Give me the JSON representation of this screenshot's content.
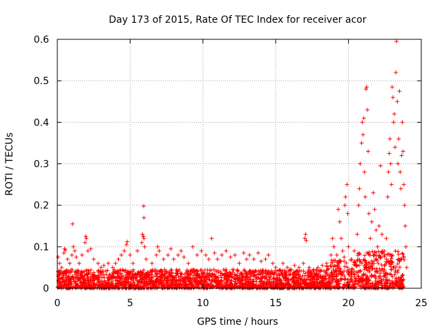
{
  "chart_data": {
    "type": "scatter",
    "title": "Day 173 of 2015, Rate Of TEC Index for receiver acor",
    "xlabel": "GPS time / hours",
    "ylabel": "ROTI / TECUs",
    "xlim": [
      0,
      25
    ],
    "ylim": [
      0,
      0.6
    ],
    "xticks": [
      0,
      5,
      10,
      15,
      20,
      25
    ],
    "xtick_labels": [
      "0",
      "5",
      "10",
      "15",
      "20",
      "25"
    ],
    "yticks": [
      0,
      0.1,
      0.2,
      0.3,
      0.4,
      0.5,
      0.6
    ],
    "ytick_labels": [
      "0",
      "0.1",
      "0.2",
      "0.3",
      "0.4",
      "0.5",
      "0.6"
    ],
    "grid": true,
    "marker": "+",
    "marker_color": "#ff0000",
    "series": [
      {
        "name": "ROTI",
        "points": [
          [
            0.05,
            0.075
          ],
          [
            0.15,
            0.06
          ],
          [
            0.3,
            0.05
          ],
          [
            0.45,
            0.085
          ],
          [
            0.5,
            0.095
          ],
          [
            0.55,
            0.092
          ],
          [
            0.7,
            0.07
          ],
          [
            0.85,
            0.06
          ],
          [
            1.0,
            0.08
          ],
          [
            1.05,
            0.155
          ],
          [
            1.1,
            0.1
          ],
          [
            1.2,
            0.09
          ],
          [
            1.3,
            0.075
          ],
          [
            1.5,
            0.06
          ],
          [
            1.7,
            0.08
          ],
          [
            1.9,
            0.11
          ],
          [
            1.95,
            0.125
          ],
          [
            2.0,
            0.12
          ],
          [
            2.1,
            0.09
          ],
          [
            2.3,
            0.095
          ],
          [
            2.5,
            0.07
          ],
          [
            2.8,
            0.06
          ],
          [
            3.0,
            0.05
          ],
          [
            3.2,
            0.055
          ],
          [
            3.5,
            0.06
          ],
          [
            3.8,
            0.05
          ],
          [
            4.0,
            0.06
          ],
          [
            4.2,
            0.07
          ],
          [
            4.4,
            0.08
          ],
          [
            4.6,
            0.09
          ],
          [
            4.75,
            0.105
          ],
          [
            4.8,
            0.112
          ],
          [
            5.0,
            0.08
          ],
          [
            5.2,
            0.06
          ],
          [
            5.5,
            0.09
          ],
          [
            5.8,
            0.11
          ],
          [
            5.85,
            0.13
          ],
          [
            5.9,
            0.125
          ],
          [
            5.95,
            0.12
          ],
          [
            6.0,
            0.1
          ],
          [
            5.93,
            0.198
          ],
          [
            5.95,
            0.17
          ],
          [
            6.1,
            0.07
          ],
          [
            6.5,
            0.06
          ],
          [
            6.8,
            0.08
          ],
          [
            6.9,
            0.1
          ],
          [
            7.0,
            0.09
          ],
          [
            7.3,
            0.07
          ],
          [
            7.6,
            0.08
          ],
          [
            7.8,
            0.095
          ],
          [
            8.0,
            0.07
          ],
          [
            8.3,
            0.08
          ],
          [
            8.5,
            0.09
          ],
          [
            8.7,
            0.075
          ],
          [
            9.0,
            0.06
          ],
          [
            9.3,
            0.1
          ],
          [
            9.6,
            0.08
          ],
          [
            9.9,
            0.09
          ],
          [
            10.2,
            0.08
          ],
          [
            10.4,
            0.07
          ],
          [
            10.6,
            0.12
          ],
          [
            10.8,
            0.085
          ],
          [
            11.0,
            0.07
          ],
          [
            11.3,
            0.08
          ],
          [
            11.6,
            0.09
          ],
          [
            11.9,
            0.075
          ],
          [
            12.2,
            0.08
          ],
          [
            12.5,
            0.06
          ],
          [
            12.8,
            0.085
          ],
          [
            13.0,
            0.07
          ],
          [
            13.2,
            0.08
          ],
          [
            13.5,
            0.07
          ],
          [
            13.8,
            0.085
          ],
          [
            14.0,
            0.065
          ],
          [
            14.3,
            0.07
          ],
          [
            14.5,
            0.08
          ],
          [
            14.8,
            0.06
          ],
          [
            15.0,
            0.05
          ],
          [
            15.3,
            0.045
          ],
          [
            15.5,
            0.06
          ],
          [
            15.8,
            0.05
          ],
          [
            16.0,
            0.045
          ],
          [
            16.3,
            0.055
          ],
          [
            16.6,
            0.05
          ],
          [
            16.9,
            0.06
          ],
          [
            17.0,
            0.12
          ],
          [
            17.05,
            0.13
          ],
          [
            17.1,
            0.115
          ],
          [
            17.3,
            0.05
          ],
          [
            17.6,
            0.045
          ],
          [
            17.9,
            0.05
          ],
          [
            18.2,
            0.055
          ],
          [
            18.5,
            0.06
          ],
          [
            18.8,
            0.08
          ],
          [
            18.9,
            0.12
          ],
          [
            19.0,
            0.1
          ],
          [
            19.2,
            0.08
          ],
          [
            19.3,
            0.19
          ],
          [
            19.4,
            0.16
          ],
          [
            19.5,
            0.12
          ],
          [
            19.6,
            0.09
          ],
          [
            19.7,
            0.075
          ],
          [
            19.75,
            0.2
          ],
          [
            19.8,
            0.22
          ],
          [
            19.9,
            0.25
          ],
          [
            19.95,
            0.18
          ],
          [
            20.0,
            0.1
          ],
          [
            20.2,
            0.07
          ],
          [
            20.4,
            0.09
          ],
          [
            20.6,
            0.13
          ],
          [
            20.7,
            0.2
          ],
          [
            20.75,
            0.24
          ],
          [
            20.8,
            0.3
          ],
          [
            20.9,
            0.35
          ],
          [
            20.95,
            0.4
          ],
          [
            21.0,
            0.37
          ],
          [
            21.05,
            0.41
          ],
          [
            21.1,
            0.28
          ],
          [
            21.15,
            0.22
          ],
          [
            21.2,
            0.48
          ],
          [
            21.25,
            0.485
          ],
          [
            21.3,
            0.43
          ],
          [
            21.35,
            0.33
          ],
          [
            21.4,
            0.18
          ],
          [
            21.5,
            0.12
          ],
          [
            21.6,
            0.16
          ],
          [
            21.7,
            0.23
          ],
          [
            21.8,
            0.19
          ],
          [
            21.9,
            0.14
          ],
          [
            22.0,
            0.1
          ],
          [
            22.1,
            0.15
          ],
          [
            22.2,
            0.295
          ],
          [
            22.3,
            0.13
          ],
          [
            22.5,
            0.08
          ],
          [
            22.6,
            0.12
          ],
          [
            22.7,
            0.22
          ],
          [
            22.75,
            0.28
          ],
          [
            22.8,
            0.325
          ],
          [
            22.85,
            0.36
          ],
          [
            22.9,
            0.3
          ],
          [
            22.95,
            0.25
          ],
          [
            23.0,
            0.485
          ],
          [
            23.05,
            0.46
          ],
          [
            23.1,
            0.4
          ],
          [
            23.15,
            0.42
          ],
          [
            23.2,
            0.34
          ],
          [
            23.25,
            0.52
          ],
          [
            23.3,
            0.595
          ],
          [
            23.35,
            0.45
          ],
          [
            23.4,
            0.3
          ],
          [
            23.45,
            0.36
          ],
          [
            23.5,
            0.475
          ],
          [
            23.55,
            0.28
          ],
          [
            23.6,
            0.24
          ],
          [
            23.65,
            0.32
          ],
          [
            23.7,
            0.4
          ],
          [
            23.75,
            0.33
          ],
          [
            23.8,
            0.25
          ],
          [
            23.85,
            0.2
          ],
          [
            23.9,
            0.15
          ],
          [
            23.95,
            0.1
          ],
          [
            24.0,
            0.05
          ]
        ]
      }
    ]
  }
}
